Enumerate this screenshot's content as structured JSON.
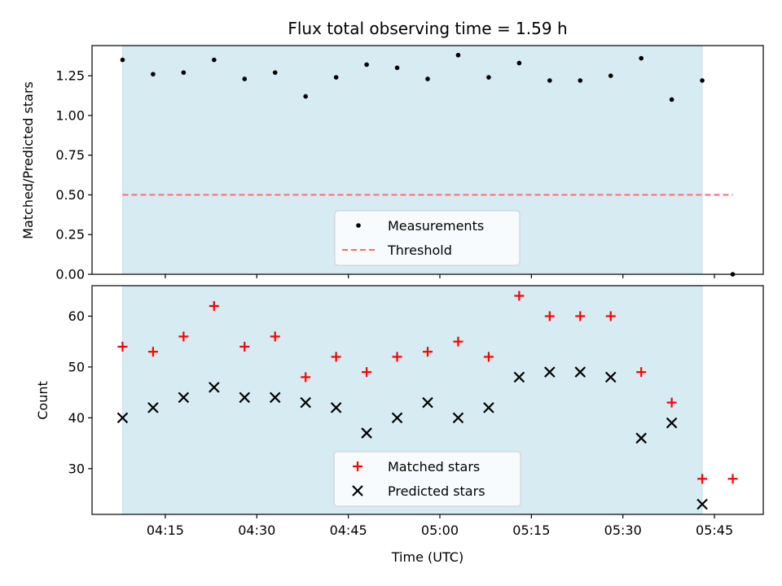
{
  "chart_data": [
    {
      "type": "scatter",
      "panel": "top",
      "title": "Flux total observing time = 1.59 h",
      "ylabel": "Matched/Predicted stars",
      "ylim": [
        0,
        1.44
      ],
      "yticks": [
        0.0,
        0.25,
        0.5,
        0.75,
        1.0,
        1.25
      ],
      "ytick_labels": [
        "0.00",
        "0.25",
        "0.50",
        "0.75",
        "1.00",
        "1.25"
      ],
      "shaded_span": {
        "from": "04:08",
        "to": "05:43",
        "color": "#add8e6",
        "alpha": 0.5
      },
      "series": [
        {
          "name": "Measurements",
          "marker": "dot",
          "color": "#000000",
          "points": [
            {
              "x": "04:08",
              "y": 1.35
            },
            {
              "x": "04:13",
              "y": 1.26
            },
            {
              "x": "04:18",
              "y": 1.27
            },
            {
              "x": "04:23",
              "y": 1.35
            },
            {
              "x": "04:28",
              "y": 1.23
            },
            {
              "x": "04:33",
              "y": 1.27
            },
            {
              "x": "04:38",
              "y": 1.12
            },
            {
              "x": "04:43",
              "y": 1.24
            },
            {
              "x": "04:48",
              "y": 1.32
            },
            {
              "x": "04:53",
              "y": 1.3
            },
            {
              "x": "04:58",
              "y": 1.23
            },
            {
              "x": "05:03",
              "y": 1.38
            },
            {
              "x": "05:08",
              "y": 1.24
            },
            {
              "x": "05:13",
              "y": 1.33
            },
            {
              "x": "05:18",
              "y": 1.22
            },
            {
              "x": "05:23",
              "y": 1.22
            },
            {
              "x": "05:28",
              "y": 1.25
            },
            {
              "x": "05:33",
              "y": 1.36
            },
            {
              "x": "05:38",
              "y": 1.1
            },
            {
              "x": "05:43",
              "y": 1.22
            },
            {
              "x": "05:48",
              "y": 0.0
            }
          ]
        },
        {
          "name": "Threshold",
          "marker": "dashed-line",
          "color": "#ff6b6b",
          "y": 0.5,
          "x_range": [
            "04:08",
            "05:48"
          ]
        }
      ],
      "legend_position": "lower center"
    },
    {
      "type": "scatter",
      "panel": "bottom",
      "xlabel": "Time (UTC)",
      "ylabel": "Count",
      "ylim": [
        21,
        66
      ],
      "yticks": [
        30,
        40,
        50,
        60
      ],
      "ytick_labels": [
        "30",
        "40",
        "50",
        "60"
      ],
      "xticks": [
        "04:15",
        "04:30",
        "04:45",
        "05:00",
        "05:15",
        "05:30",
        "05:45"
      ],
      "xlim": [
        "04:03",
        "05:53"
      ],
      "shaded_span": {
        "from": "04:08",
        "to": "05:43",
        "color": "#add8e6",
        "alpha": 0.5
      },
      "series": [
        {
          "name": "Matched stars",
          "marker": "plus",
          "color": "#ff0000",
          "points": [
            {
              "x": "04:08",
              "y": 54
            },
            {
              "x": "04:13",
              "y": 53
            },
            {
              "x": "04:18",
              "y": 56
            },
            {
              "x": "04:23",
              "y": 62
            },
            {
              "x": "04:28",
              "y": 54
            },
            {
              "x": "04:33",
              "y": 56
            },
            {
              "x": "04:38",
              "y": 48
            },
            {
              "x": "04:43",
              "y": 52
            },
            {
              "x": "04:48",
              "y": 49
            },
            {
              "x": "04:53",
              "y": 52
            },
            {
              "x": "04:58",
              "y": 53
            },
            {
              "x": "05:03",
              "y": 55
            },
            {
              "x": "05:08",
              "y": 52
            },
            {
              "x": "05:13",
              "y": 64
            },
            {
              "x": "05:18",
              "y": 60
            },
            {
              "x": "05:23",
              "y": 60
            },
            {
              "x": "05:28",
              "y": 60
            },
            {
              "x": "05:33",
              "y": 49
            },
            {
              "x": "05:38",
              "y": 43
            },
            {
              "x": "05:43",
              "y": 28
            },
            {
              "x": "05:48",
              "y": 28
            }
          ]
        },
        {
          "name": "Predicted stars",
          "marker": "x",
          "color": "#000000",
          "points": [
            {
              "x": "04:08",
              "y": 40
            },
            {
              "x": "04:13",
              "y": 42
            },
            {
              "x": "04:18",
              "y": 44
            },
            {
              "x": "04:23",
              "y": 46
            },
            {
              "x": "04:28",
              "y": 44
            },
            {
              "x": "04:33",
              "y": 44
            },
            {
              "x": "04:38",
              "y": 43
            },
            {
              "x": "04:43",
              "y": 42
            },
            {
              "x": "04:48",
              "y": 37
            },
            {
              "x": "04:53",
              "y": 40
            },
            {
              "x": "04:58",
              "y": 43
            },
            {
              "x": "05:03",
              "y": 40
            },
            {
              "x": "05:08",
              "y": 42
            },
            {
              "x": "05:13",
              "y": 48
            },
            {
              "x": "05:18",
              "y": 49
            },
            {
              "x": "05:23",
              "y": 49
            },
            {
              "x": "05:28",
              "y": 48
            },
            {
              "x": "05:33",
              "y": 36
            },
            {
              "x": "05:38",
              "y": 39
            },
            {
              "x": "05:43",
              "y": 23
            }
          ]
        }
      ],
      "legend_position": "lower center"
    }
  ]
}
